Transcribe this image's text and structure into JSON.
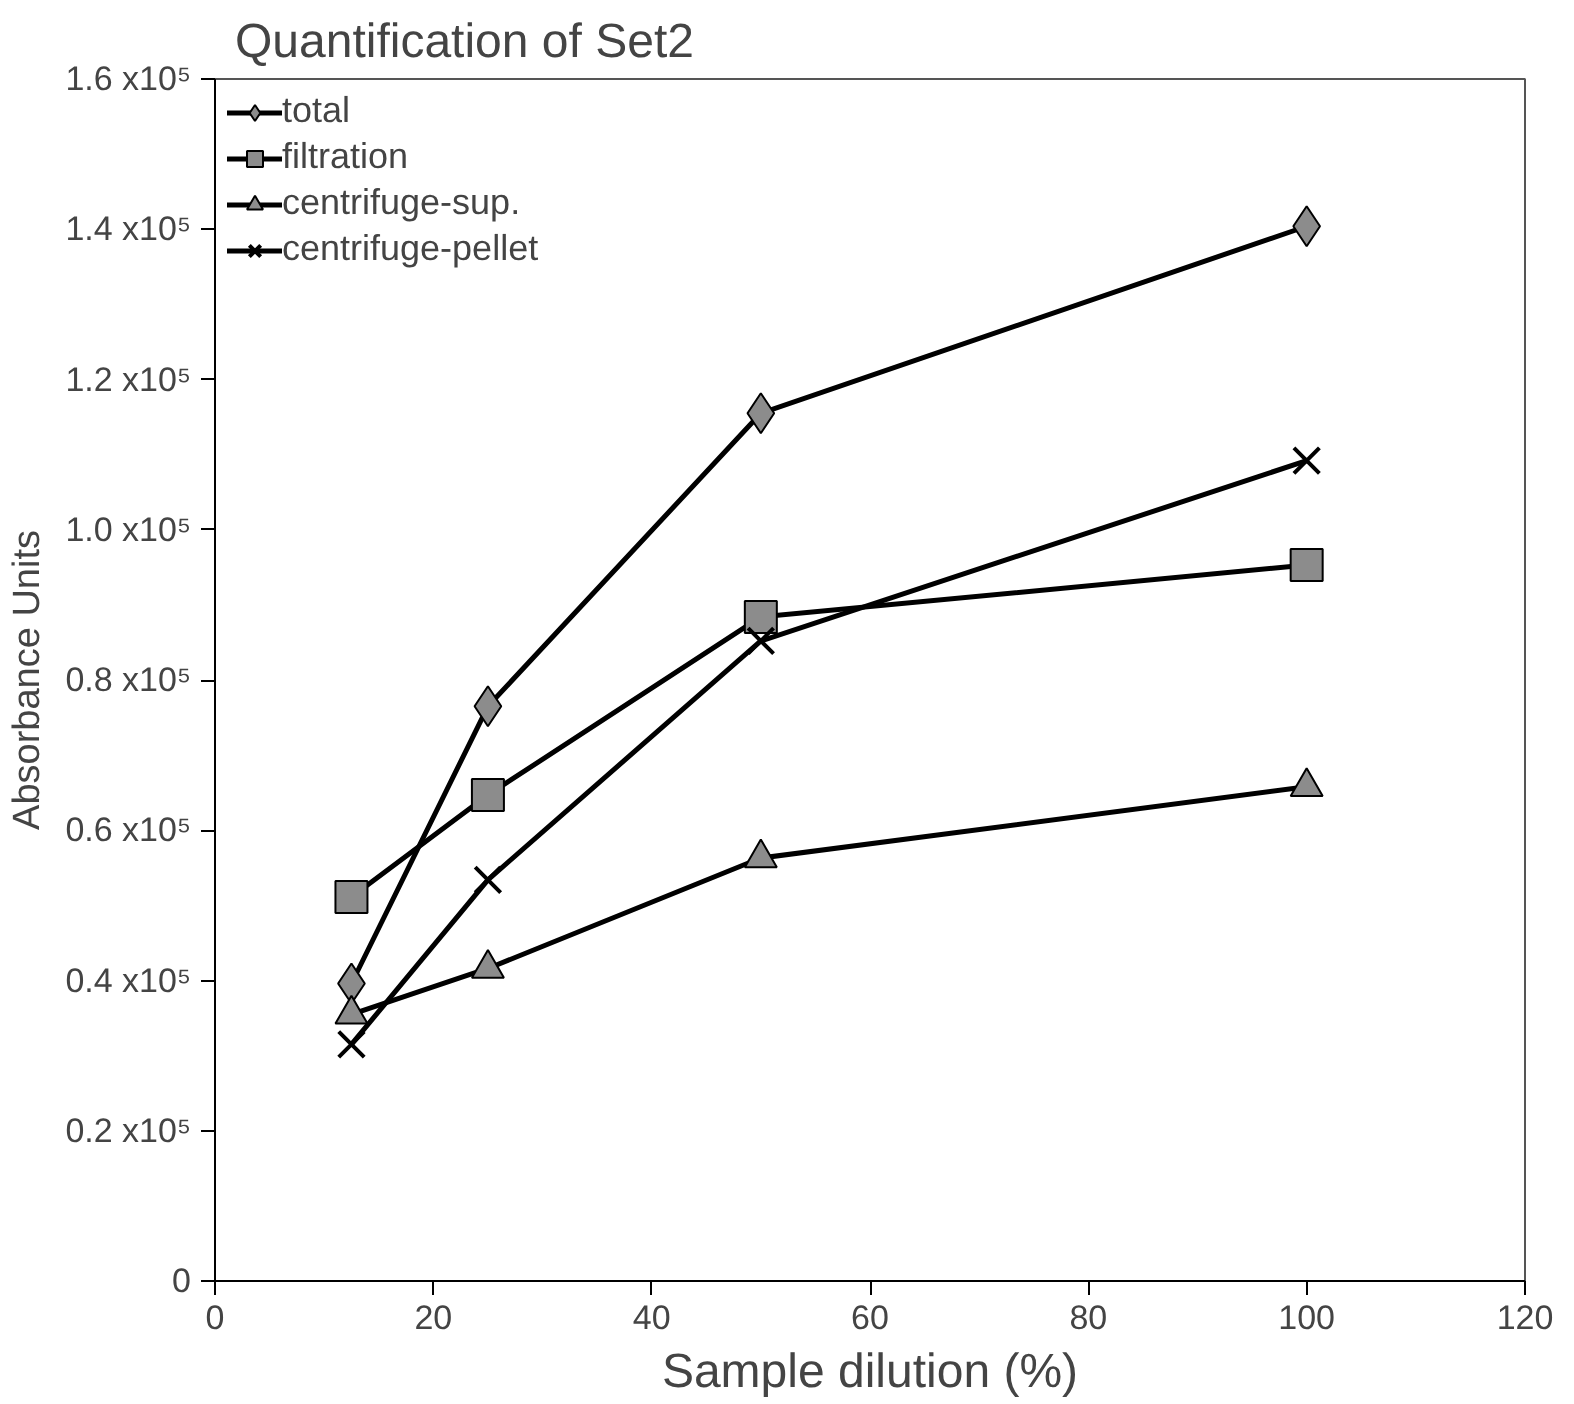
{
  "chart_data": {
    "type": "line",
    "title": "Quantification of Set2",
    "xlabel": "Sample dilution (%)",
    "ylabel": "Absorbance Units",
    "x": [
      12.5,
      25,
      50,
      100
    ],
    "series": [
      {
        "name": "total",
        "color": "#8c8c8c",
        "marker": "diamond",
        "values": [
          39600,
          76500,
          115500,
          140400
        ]
      },
      {
        "name": "filtration",
        "color": "#8c8c8c",
        "marker": "square",
        "values": [
          51100,
          64700,
          88400,
          95300
        ]
      },
      {
        "name": "centrifuge-sup.",
        "color": "#8c8c8c",
        "marker": "triangle",
        "values": [
          35500,
          41600,
          56300,
          65800
        ]
      },
      {
        "name": "centrifuge-pellet",
        "color": "#000000",
        "marker": "cross",
        "values": [
          31500,
          53400,
          85200,
          109200
        ]
      }
    ],
    "xlim": [
      0,
      120
    ],
    "xticks": [
      0,
      20,
      40,
      60,
      80,
      100,
      120
    ],
    "ylim": [
      0,
      160000
    ],
    "yticks": [
      0,
      {
        "value": 20000,
        "label": "0.2 x10⁵"
      },
      {
        "value": 40000,
        "label": "0.4 x10⁵"
      },
      {
        "value": 60000,
        "label": "0.6 x10⁵"
      },
      {
        "value": 80000,
        "label": "0.8 x10⁵"
      },
      {
        "value": 100000,
        "label": "1.0 x10⁵"
      },
      {
        "value": 120000,
        "label": "1.2 x10⁵"
      },
      {
        "value": 140000,
        "label": "1.4 x10⁵"
      },
      {
        "value": 160000,
        "label": "1.6 x10⁵"
      }
    ],
    "grid": false,
    "legend": "top left",
    "line_style": "solid"
  }
}
